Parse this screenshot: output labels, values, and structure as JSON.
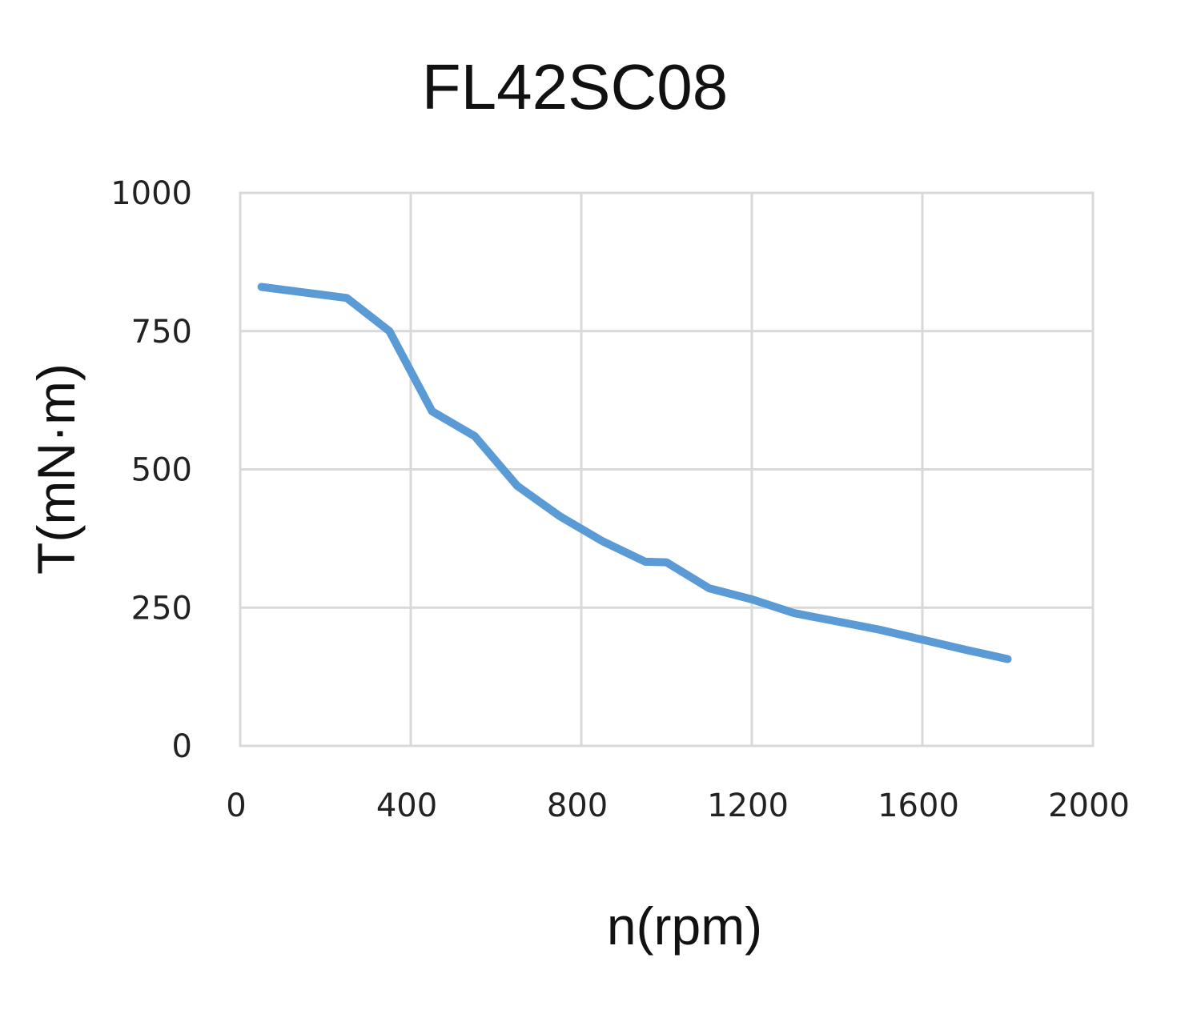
{
  "chart_data": {
    "type": "line",
    "title": "FL42SC08",
    "xlabel": "n(rpm)",
    "ylabel": "T(mN·m)",
    "xlim": [
      0,
      2000
    ],
    "ylim": [
      0,
      1000
    ],
    "x_ticks": [
      "0",
      "400",
      "800",
      "1200",
      "1600",
      "2000"
    ],
    "y_ticks": [
      "0",
      "250",
      "500",
      "750",
      "1000"
    ],
    "x_tick_values": [
      0,
      400,
      800,
      1200,
      1600,
      2000
    ],
    "y_tick_values": [
      0,
      250,
      500,
      750,
      1000
    ],
    "grid": true,
    "legend": "none",
    "series": [
      {
        "color": "#5b9bd5",
        "x": [
          50,
          150,
          250,
          350,
          450,
          550,
          650,
          750,
          850,
          950,
          1000,
          1100,
          1200,
          1300,
          1400,
          1500,
          1600,
          1700,
          1800
        ],
        "y": [
          830,
          820,
          810,
          750,
          605,
          560,
          470,
          415,
          370,
          333,
          332,
          285,
          265,
          240,
          225,
          210,
          192,
          174,
          157
        ]
      }
    ]
  }
}
